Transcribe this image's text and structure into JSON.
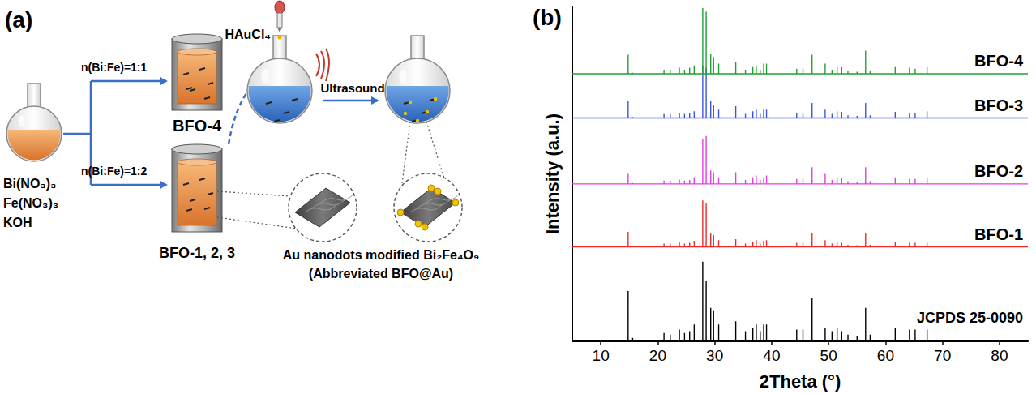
{
  "diagram": {
    "letter": "(a)",
    "precursors": [
      "Bi(NO₃)₃",
      "Fe(NO₃)₃",
      "KOH"
    ],
    "branches": [
      {
        "ratio": "n(Bi:Fe)=1:1",
        "product": "BFO-4"
      },
      {
        "ratio": "n(Bi:Fe)=1:2",
        "product": "BFO-1, 2, 3"
      }
    ],
    "reagent": "HAuCl₄",
    "step": "Ultrasound",
    "result": [
      "Au nanodots modified Bi₂Fe₄O₉",
      "(Abbreviated BFO@Au)"
    ]
  },
  "chart_data": {
    "type": "line",
    "panel": "(b)",
    "x_label": "2Theta (°)",
    "y_label": "Intensity (a.u.)",
    "xlim": [
      5,
      85
    ],
    "xticks": [
      10,
      20,
      30,
      40,
      50,
      60,
      70,
      80
    ],
    "ylim": [
      0,
      100
    ],
    "tick_labels": "x",
    "grid": false,
    "x": [
      14.8,
      15.6,
      21.1,
      22.2,
      23.8,
      24.7,
      25.6,
      26.4,
      27.9,
      28.5,
      29.3,
      29.8,
      30.7,
      33.7,
      35.4,
      36.7,
      37.3,
      38.0,
      38.6,
      39.1,
      44.4,
      45.5,
      47.1,
      49.4,
      50.6,
      51.5,
      52.3,
      53.4,
      55.0,
      56.5,
      57.3,
      61.7,
      64.2,
      65.2,
      67.3
    ],
    "series": [
      {
        "name": "JCPDS 25-0090",
        "color": "#000000",
        "baseline": 0,
        "values": [
          15,
          1,
          2.5,
          2,
          3.5,
          2.5,
          3,
          5,
          23.8,
          18,
          10,
          9,
          5,
          6,
          3,
          4,
          5,
          3,
          5,
          5,
          3.5,
          3.5,
          13,
          4,
          3,
          4,
          3,
          2,
          1.5,
          10,
          2,
          4,
          3.5,
          3.5,
          3.5
        ]
      },
      {
        "name": "BFO-1",
        "color": "#ee2a2a",
        "baseline": 28.2,
        "values": [
          32.7,
          28.5,
          29.2,
          29.2,
          29.5,
          29.2,
          29.4,
          30.0,
          42.1,
          41.2,
          32.2,
          31.7,
          30.2,
          30.5,
          29.2,
          29.7,
          30.2,
          29.2,
          30.0,
          30.2,
          29.4,
          29.4,
          32.2,
          30.2,
          29.2,
          29.7,
          29.4,
          28.8,
          28.7,
          32.2,
          28.8,
          29.7,
          29.4,
          29.4,
          29.4
        ]
      },
      {
        "name": "BFO-2",
        "color": "#e23ce2",
        "baseline": 47,
        "values": [
          50.0,
          47.3,
          48.0,
          48.0,
          48.3,
          48.0,
          48.2,
          49.0,
          60.5,
          61.3,
          51.0,
          50.5,
          49.0,
          50.5,
          48.2,
          49.0,
          49.5,
          48.2,
          49.0,
          49.5,
          48.5,
          48.5,
          52.0,
          50.0,
          48.2,
          49.0,
          48.8,
          47.8,
          47.6,
          52.0,
          47.8,
          49.0,
          48.5,
          48.5,
          49.0
        ]
      },
      {
        "name": "BFO-3",
        "color": "#3a55e0",
        "baseline": 66.7,
        "values": [
          71.7,
          67.0,
          67.9,
          67.9,
          68.2,
          67.9,
          68.2,
          68.7,
          82.2,
          81.7,
          71.7,
          70.7,
          69.2,
          70.2,
          67.9,
          68.7,
          69.2,
          67.9,
          69.2,
          69.2,
          68.2,
          68.2,
          71.2,
          69.2,
          67.9,
          68.7,
          68.5,
          67.5,
          67.3,
          71.2,
          67.5,
          68.5,
          68.2,
          68.2,
          68.7
        ]
      },
      {
        "name": "BFO-4",
        "color": "#22a033",
        "baseline": 79.9,
        "values": [
          85.6,
          80.2,
          81.1,
          81.1,
          81.7,
          81.1,
          81.7,
          82.4,
          99.5,
          98.5,
          85.9,
          84.9,
          82.9,
          83.4,
          81.1,
          81.9,
          82.4,
          81.1,
          82.9,
          82.9,
          81.4,
          81.4,
          85.6,
          82.9,
          81.1,
          81.9,
          81.9,
          80.7,
          80.5,
          86.8,
          80.7,
          81.9,
          81.7,
          81.4,
          81.9
        ]
      }
    ]
  }
}
